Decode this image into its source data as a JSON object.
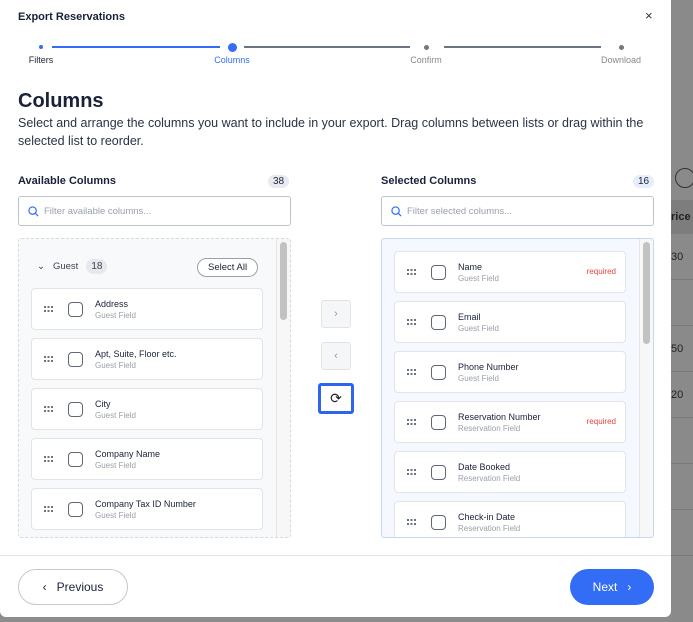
{
  "modal": {
    "title": "Export Reservations",
    "close_icon": "×"
  },
  "stepper": {
    "steps": [
      {
        "label": "Filters",
        "state": "done"
      },
      {
        "label": "Columns",
        "state": "active"
      },
      {
        "label": "Confirm",
        "state": "pending"
      },
      {
        "label": "Download",
        "state": "pending"
      }
    ]
  },
  "heading": "Columns",
  "description": "Select and arrange the columns you want to include in your export. Drag columns between lists or drag within the selected list to reorder.",
  "available": {
    "label": "Available Columns",
    "count": "38",
    "search_placeholder": "Filter available columns...",
    "group": {
      "name": "Guest",
      "count": "18",
      "select_all": "Select All"
    },
    "items": [
      {
        "name": "Address",
        "type": "Guest Field"
      },
      {
        "name": "Apt, Suite, Floor etc.",
        "type": "Guest Field"
      },
      {
        "name": "City",
        "type": "Guest Field"
      },
      {
        "name": "Company Name",
        "type": "Guest Field"
      },
      {
        "name": "Company Tax ID Number",
        "type": "Guest Field"
      }
    ]
  },
  "selected": {
    "label": "Selected Columns",
    "count": "16",
    "search_placeholder": "Filter selected columns...",
    "items": [
      {
        "name": "Name",
        "type": "Guest Field",
        "tag": "required"
      },
      {
        "name": "Email",
        "type": "Guest Field",
        "tag": ""
      },
      {
        "name": "Phone Number",
        "type": "Guest Field",
        "tag": ""
      },
      {
        "name": "Reservation Number",
        "type": "Reservation Field",
        "tag": "required"
      },
      {
        "name": "Date Booked",
        "type": "Reservation Field",
        "tag": ""
      },
      {
        "name": "Check-in Date",
        "type": "Reservation Field",
        "tag": ""
      }
    ]
  },
  "transfer": {
    "add": "›",
    "remove": "‹",
    "reset": "⟳"
  },
  "footer": {
    "previous": "Previous",
    "next": "Next"
  },
  "background": {
    "header": "rice",
    "values": [
      "30",
      "",
      "50",
      "20",
      "",
      "",
      ""
    ]
  },
  "colors": {
    "accent": "#336cf5",
    "required": "#e0463f"
  }
}
